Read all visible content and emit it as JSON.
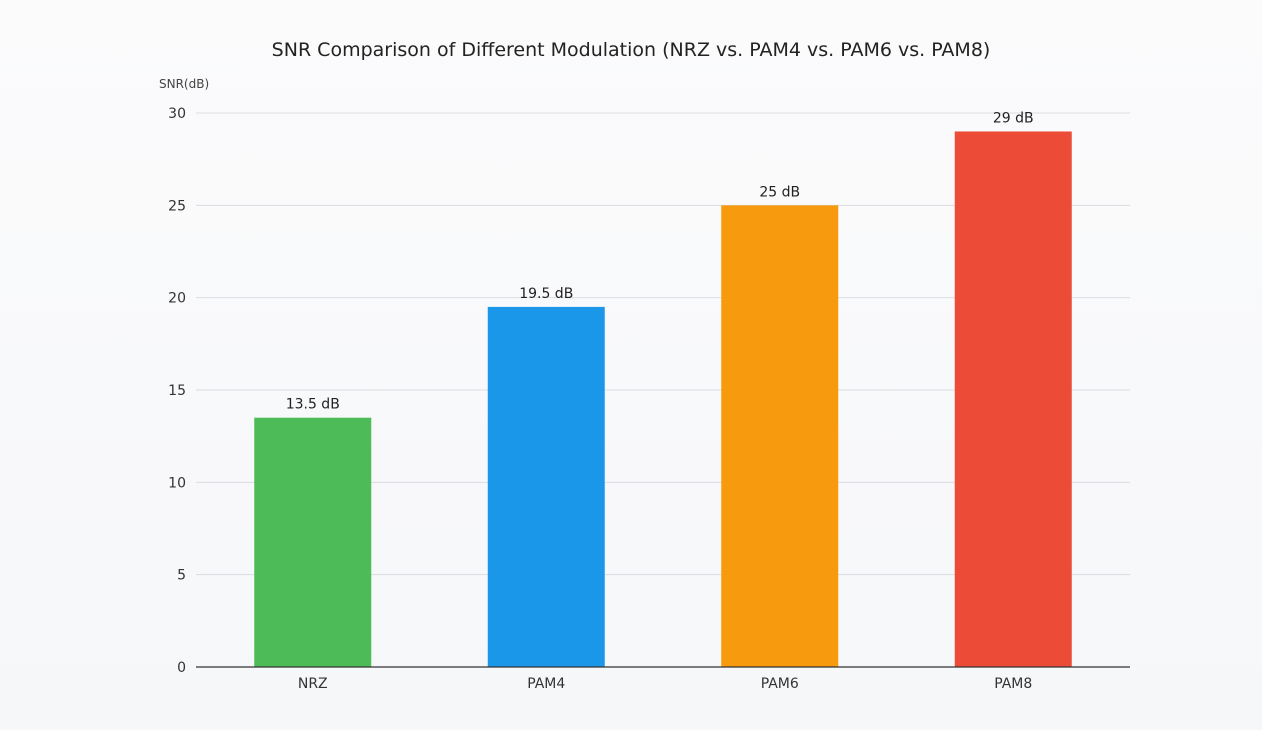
{
  "chart_data": {
    "type": "bar",
    "title": "SNR Comparison of Different Modulation (NRZ vs. PAM4 vs. PAM6 vs. PAM8)",
    "ylabel": "SNR(dB)",
    "xlabel": "",
    "categories": [
      "NRZ",
      "PAM4",
      "PAM6",
      "PAM8"
    ],
    "values": [
      13.5,
      19.5,
      25,
      29
    ],
    "data_labels": [
      "13.5 dB",
      "19.5 dB",
      "25 dB",
      "29 dB"
    ],
    "colors": [
      "#4dbb57",
      "#1a97e8",
      "#f79a0e",
      "#ec4b38"
    ],
    "ylim": [
      0,
      30
    ],
    "yticks": [
      0,
      5,
      10,
      15,
      20,
      25,
      30
    ],
    "grid": true,
    "legend": "none"
  }
}
